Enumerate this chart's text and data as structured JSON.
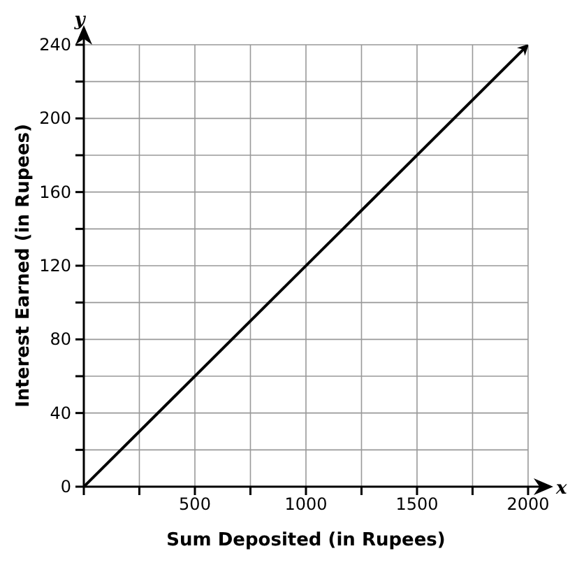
{
  "chart_data": {
    "type": "line",
    "xlabel": "Sum Deposited (in Rupees)",
    "ylabel": "Interest Earned (in Rupees)",
    "annotations": [
      "x",
      "y"
    ],
    "series": [
      {
        "x": [
          0,
          2000
        ],
        "values": [
          0,
          240
        ],
        "color": "#000000"
      }
    ],
    "xlim": [
      0,
      2000
    ],
    "ylim": [
      0,
      240
    ],
    "xticks": [
      {
        "value": 0,
        "label": null
      },
      {
        "value": 250,
        "label": null
      },
      500,
      {
        "value": 750,
        "label": null
      },
      1000,
      {
        "value": 1250,
        "label": null
      },
      1500,
      {
        "value": 1750,
        "label": null
      },
      2000
    ],
    "yticks": [
      0,
      {
        "value": 20,
        "label": null
      },
      40,
      {
        "value": 60,
        "label": null
      },
      80,
      {
        "value": 100,
        "label": null
      },
      120,
      {
        "value": 140,
        "label": null
      },
      160,
      {
        "value": 180,
        "label": null
      },
      200,
      {
        "value": 220,
        "label": null
      },
      240
    ],
    "grid": true,
    "marker": "none",
    "line_style": "solid"
  }
}
